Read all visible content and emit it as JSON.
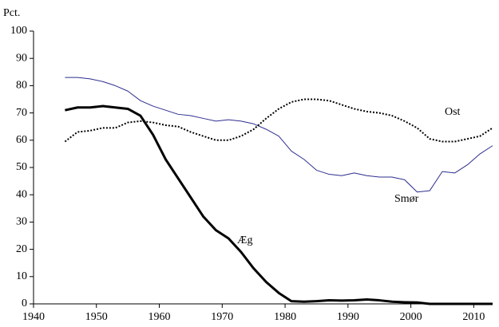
{
  "chart_data": {
    "type": "line",
    "ylabel": "Pct.",
    "x": [
      1945,
      1947,
      1949,
      1951,
      1953,
      1955,
      1957,
      1959,
      1961,
      1963,
      1965,
      1967,
      1969,
      1971,
      1973,
      1975,
      1977,
      1979,
      1981,
      1983,
      1985,
      1987,
      1989,
      1991,
      1993,
      1995,
      1997,
      1999,
      2001,
      2003,
      2005,
      2007,
      2009,
      2011,
      2013
    ],
    "series": [
      {
        "name": "Æg",
        "color": "#000000",
        "linestyle": "solid",
        "values": [
          71,
          72,
          72,
          72.5,
          72,
          71.5,
          69,
          62,
          53,
          46,
          39,
          32,
          27,
          24,
          19,
          13,
          8,
          4,
          1,
          0.8,
          1,
          1.3,
          1.2,
          1.3,
          1.6,
          1.3,
          0.8,
          0.6,
          0.5,
          0,
          0,
          0,
          0,
          0,
          0
        ]
      },
      {
        "name": "Smør",
        "color": "#2e2e8f",
        "linestyle": "solid",
        "values": [
          83,
          83,
          82.5,
          81.5,
          80,
          78,
          74.5,
          72.5,
          71,
          69.5,
          69,
          68,
          67,
          67.5,
          67,
          66,
          64,
          61.5,
          56,
          53,
          49,
          47.5,
          47,
          48,
          47,
          46.5,
          46.5,
          45.5,
          41,
          41.5,
          48.5,
          48,
          51,
          55,
          58
        ]
      },
      {
        "name": "Ost",
        "color": "#000000",
        "linestyle": "dotted",
        "values": [
          59.5,
          63,
          63.5,
          64.5,
          64.5,
          66.5,
          67,
          66.5,
          65.5,
          65,
          63,
          61.5,
          60,
          60,
          61.5,
          64,
          68,
          71.5,
          74,
          75,
          75,
          74.5,
          73,
          71.5,
          70.5,
          70,
          69,
          67,
          64.5,
          60.5,
          59.5,
          59.5,
          60.5,
          61.5,
          64.5
        ]
      }
    ],
    "xlim": [
      1940,
      2013
    ],
    "xticks": [
      1940,
      1950,
      1960,
      1970,
      1980,
      1990,
      2000,
      2010
    ],
    "ylim": [
      0,
      100
    ],
    "yticks": [
      0,
      10,
      20,
      30,
      40,
      50,
      60,
      70,
      80,
      90,
      100
    ],
    "grid": false
  }
}
